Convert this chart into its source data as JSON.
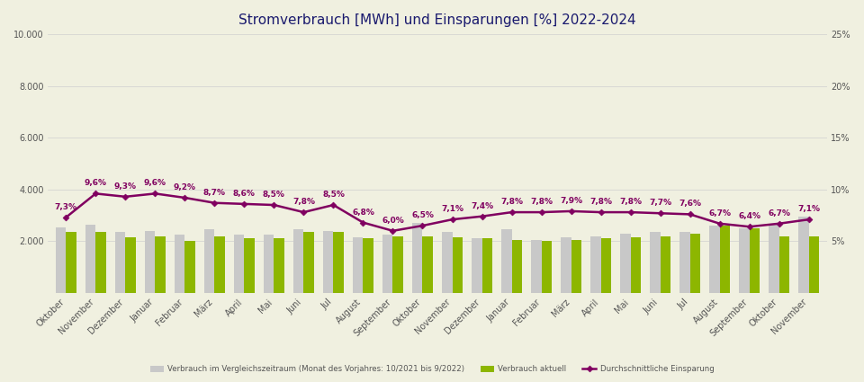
{
  "title": "Stromverbrauch [MWh] und Einsparungen [%] 2022-2024",
  "categories": [
    "Oktober",
    "November",
    "Dezember",
    "Januar",
    "Februar",
    "März",
    "April",
    "Mai",
    "Juni",
    "Jul",
    "August",
    "September",
    "Oktober",
    "November",
    "Dezember",
    "Januar",
    "Februar",
    "März",
    "April",
    "Mai",
    "Juni",
    "Jul",
    "August",
    "September",
    "Oktober",
    "November"
  ],
  "verbrauch_vj": [
    2550,
    2650,
    2350,
    2380,
    2250,
    2450,
    2250,
    2250,
    2450,
    2400,
    2150,
    2250,
    2700,
    2350,
    2100,
    2450,
    2050,
    2150,
    2200,
    2300,
    2350,
    2350,
    2600,
    2500,
    2650,
    2950
  ],
  "verbrauch_aktuell": [
    2350,
    2350,
    2150,
    2200,
    2000,
    2200,
    2100,
    2100,
    2350,
    2350,
    2100,
    2200,
    2200,
    2150,
    2100,
    2050,
    2000,
    2050,
    2100,
    2150,
    2200,
    2300,
    2600,
    2500,
    2200,
    2200
  ],
  "einsparung": [
    7.3,
    9.6,
    9.3,
    9.6,
    9.2,
    8.7,
    8.6,
    8.5,
    7.8,
    8.5,
    6.8,
    6.0,
    6.5,
    7.1,
    7.4,
    7.8,
    7.8,
    7.9,
    7.8,
    7.8,
    7.7,
    7.6,
    6.7,
    6.4,
    6.7,
    7.1
  ],
  "bar_color_vj": "#c8c8c8",
  "bar_color_aktuell": "#8db600",
  "line_color": "#800060",
  "background_color": "#f0f0e0",
  "plot_bg_color": "#f0f0e0",
  "upper_fill_color": "#eaefd8",
  "ylim_left": [
    0,
    10000
  ],
  "ylim_right": [
    0,
    25
  ],
  "yticks_left": [
    0,
    2000,
    4000,
    6000,
    8000,
    10000
  ],
  "yticks_right": [
    0,
    5,
    10,
    15,
    20,
    25
  ],
  "legend_vj": "Verbrauch im Vergleichszeitraum (Monat des Vorjahres: 10/2021 bis 9/2022)",
  "legend_aktuell": "Verbrauch aktuell",
  "legend_linie": "Durchschnittliche Einsparung",
  "title_fontsize": 11,
  "tick_fontsize": 7,
  "annotation_fontsize": 6.5
}
